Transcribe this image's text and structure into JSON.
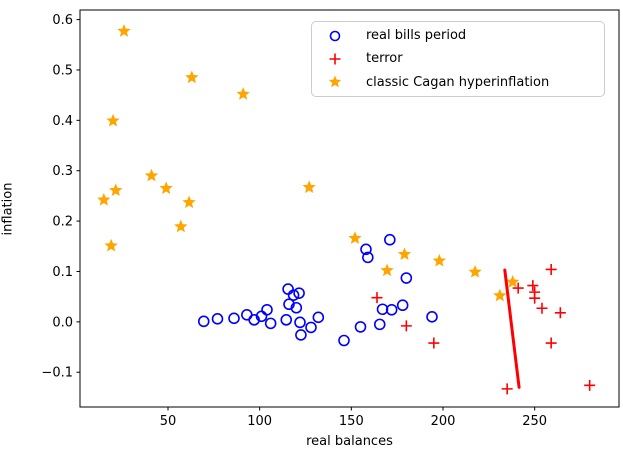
{
  "figure": {
    "background": "#ffffff",
    "text_color": "#000000",
    "spine_color": "#000000"
  },
  "chart_data": {
    "type": "scatter",
    "title": "",
    "xlabel": "real balances",
    "ylabel": "inflation",
    "xlim": [
      2,
      296
    ],
    "ylim": [
      -0.169,
      0.619
    ],
    "x_ticks": [
      50,
      100,
      150,
      200,
      250
    ],
    "y_ticks": [
      -0.1,
      0.0,
      0.1,
      0.2,
      0.3,
      0.4,
      0.5,
      0.6
    ],
    "grid": false,
    "legend_position": "upper right inside",
    "series": [
      {
        "name": "real bills period",
        "marker": "circle",
        "color": "#0000ff",
        "points": [
          [
            69.5,
            0.001
          ],
          [
            77,
            0.006
          ],
          [
            86,
            0.007
          ],
          [
            93,
            0.014
          ],
          [
            97,
            0.004
          ],
          [
            101,
            0.011
          ],
          [
            104,
            0.024
          ],
          [
            106,
            -0.003
          ],
          [
            115.5,
            0.065
          ],
          [
            118.5,
            0.053
          ],
          [
            121.5,
            0.057
          ],
          [
            116,
            0.035
          ],
          [
            120,
            0.028
          ],
          [
            114.5,
            0.004
          ],
          [
            122,
            -0.001
          ],
          [
            132,
            0.009
          ],
          [
            128,
            -0.011
          ],
          [
            122.5,
            -0.026
          ],
          [
            146,
            -0.037
          ],
          [
            155,
            -0.01
          ],
          [
            165.5,
            -0.005
          ],
          [
            158,
            0.144
          ],
          [
            159,
            0.128
          ],
          [
            167,
            0.025
          ],
          [
            172,
            0.024
          ],
          [
            178,
            0.033
          ],
          [
            171,
            0.163
          ],
          [
            180,
            0.087
          ],
          [
            194,
            0.01
          ]
        ]
      },
      {
        "name": "terror",
        "marker": "plus",
        "color": "#ff0000",
        "points": [
          [
            164,
            0.048
          ],
          [
            180,
            -0.008
          ],
          [
            195,
            -0.042
          ],
          [
            235,
            -0.133
          ],
          [
            241,
            0.067
          ],
          [
            249,
            0.072
          ],
          [
            250,
            0.059
          ],
          [
            250,
            0.047
          ],
          [
            254,
            0.027
          ],
          [
            259,
            0.104
          ],
          [
            264,
            0.018
          ],
          [
            259,
            -0.042
          ],
          [
            280,
            -0.126
          ]
        ]
      },
      {
        "name": "classic Cagan hyperinflation",
        "marker": "star",
        "color": "#ffa500",
        "points": [
          [
            26,
            0.577
          ],
          [
            20,
            0.399
          ],
          [
            15,
            0.242
          ],
          [
            21.5,
            0.261
          ],
          [
            19,
            0.151
          ],
          [
            41,
            0.29
          ],
          [
            49,
            0.265
          ],
          [
            57,
            0.189
          ],
          [
            61.5,
            0.237
          ],
          [
            63,
            0.485
          ],
          [
            91,
            0.452
          ],
          [
            127,
            0.267
          ],
          [
            152,
            0.166
          ],
          [
            169.5,
            0.102
          ],
          [
            179,
            0.134
          ],
          [
            198,
            0.121
          ],
          [
            217.5,
            0.099
          ],
          [
            231,
            0.052
          ],
          [
            238,
            0.079
          ]
        ]
      }
    ],
    "fit_line": {
      "color": "#ff0000",
      "width": 3,
      "from": [
        233.7,
        0.103
      ],
      "to": [
        241.5,
        -0.13
      ]
    }
  }
}
